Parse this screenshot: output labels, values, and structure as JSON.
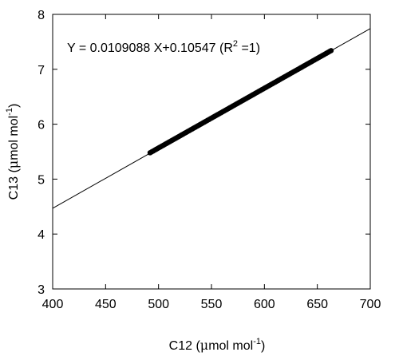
{
  "chart_data": {
    "type": "scatter",
    "title": "",
    "xlabel": {
      "main": "C12 (",
      "mu": "μ",
      "rest": "mol mol",
      "sup": "-1",
      "close": ")"
    },
    "ylabel": {
      "main": "C13 (",
      "mu": "μ",
      "rest": "mol mol",
      "sup": "-1",
      "close": ")"
    },
    "xlim": [
      400,
      700
    ],
    "ylim": [
      3,
      8
    ],
    "xticks": [
      "400",
      "450",
      "500",
      "550",
      "600",
      "650",
      "700"
    ],
    "yticks": [
      "3",
      "4",
      "5",
      "6",
      "7",
      "8"
    ],
    "grid": false,
    "fit_line": {
      "slope": 0.0109088,
      "intercept": 0.10547
    },
    "equation": {
      "prefix": "Y = 0.0109088 X+0.10547 (R",
      "sup": "2",
      "suffix": " =1)"
    },
    "series": [
      {
        "x_range": [
          492,
          663
        ],
        "y_range": [
          5.48,
          7.34
        ]
      }
    ],
    "colors": {
      "points": "#000000",
      "line": "#000000"
    }
  }
}
